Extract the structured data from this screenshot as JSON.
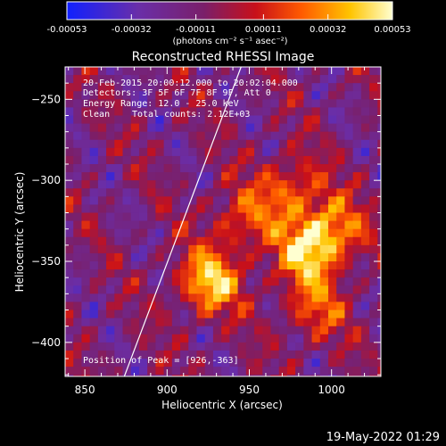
{
  "chart_data": {
    "type": "heatmap",
    "title": "Reconstructed RHESSI Image",
    "xlabel": "Heliocentric X (arcsec)",
    "ylabel": "Heliocentric Y (arcsec)",
    "xlim": [
      838,
      1030
    ],
    "ylim": [
      -421,
      -230
    ],
    "x_ticks": [
      850,
      900,
      950,
      1000
    ],
    "y_ticks": [
      -250,
      -300,
      -350,
      -400
    ],
    "colorbar": {
      "min": -0.00053,
      "max": 0.00053,
      "tick_values": [
        -0.00053,
        -0.00032,
        -0.00011,
        0.00011,
        0.00032,
        0.00053
      ],
      "tick_labels": [
        "-0.00053",
        "-0.00032",
        "-0.00011",
        "0.00011",
        "0.00032",
        "0.00053"
      ],
      "unit_label": "(photons cm⁻² s⁻¹ asec⁻²)",
      "colors": [
        "#1020ff",
        "#6a2ea8",
        "#7a1f6a",
        "#c8101a",
        "#ff5a00",
        "#ffc400",
        "#ffffd0"
      ]
    },
    "annotations": {
      "time_range": "20-Feb-2015 20:00:12.000 to 20:02:04.000",
      "detectors": "Detectors: 3F 5F 6F 7F 8F 9F, Att 0",
      "energy": "Energy Range: 12.0 - 25.0 keV",
      "algorithm": "Clean",
      "counts": "Total counts: 2.12E+03",
      "peak_label": "Position of Peak = [926,-363]"
    },
    "peak": [
      926,
      -363
    ],
    "limb_line": [
      [
        874,
        -421
      ],
      [
        945,
        -230
      ]
    ],
    "bright_regions": [
      {
        "x": 926,
        "y": -363,
        "intensity": 0.00053
      },
      {
        "x": 985,
        "y": -345,
        "intensity": 0.00046
      },
      {
        "x": 1000,
        "y": -330,
        "intensity": 0.00042
      },
      {
        "x": 975,
        "y": -305,
        "intensity": 0.00035
      },
      {
        "x": 945,
        "y": -325,
        "intensity": 0.0003
      },
      {
        "x": 990,
        "y": -380,
        "intensity": 0.0003
      }
    ]
  },
  "footer_timestamp": "19-May-2022 01:29"
}
